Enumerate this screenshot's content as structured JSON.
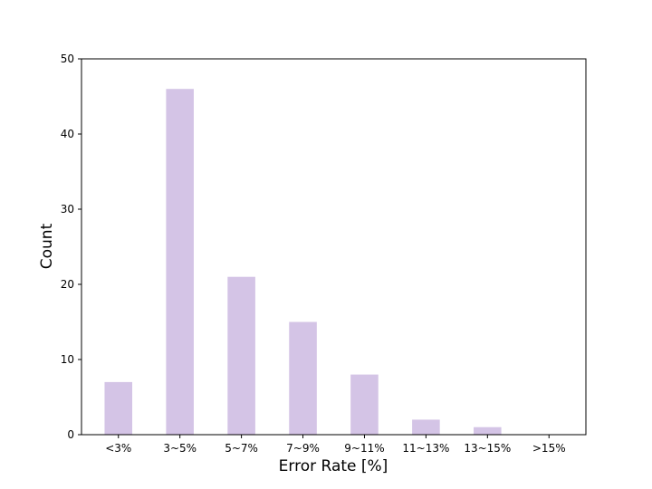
{
  "chart_data": {
    "type": "bar",
    "x_label": "Error Rate [%]",
    "y_label": "Count",
    "categories": [
      "<3%",
      "3~5%",
      "5~7%",
      "7~9%",
      "9~11%",
      "11~13%",
      "13~15%",
      ">15%"
    ],
    "values": [
      7,
      46,
      21,
      15,
      8,
      2,
      1,
      0
    ],
    "color": "#d4c4e6",
    "ylim": [
      0,
      50
    ],
    "yticks": [
      0,
      10,
      20,
      30,
      40,
      50
    ],
    "grid": false
  }
}
